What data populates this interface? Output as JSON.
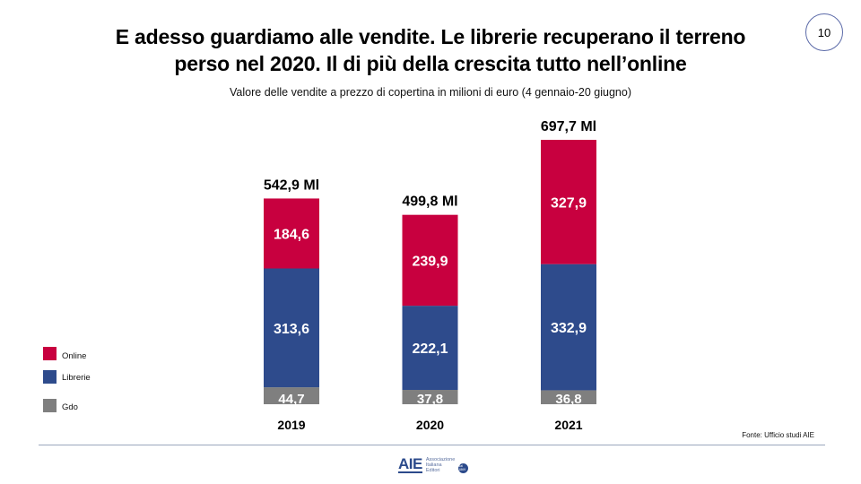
{
  "header": {
    "title_line1": "E adesso guardiamo alle vendite. Le librerie recuperano il terreno",
    "title_line2": "perso nel 2020. Il di più della crescita tutto nell’online",
    "page_number": "10"
  },
  "chart_data": {
    "type": "bar",
    "stacked": true,
    "title": "Valore delle vendite a prezzo di copertina in milioni di euro (4 gennaio-20 giugno)",
    "xlabel": "",
    "ylabel": "",
    "categories": [
      "2019",
      "2020",
      "2021"
    ],
    "series": [
      {
        "name": "Gdo",
        "color": "#7f7f7f",
        "values": [
          44.7,
          37.8,
          36.8
        ],
        "labels": [
          "44,7",
          "37,8",
          "36,8"
        ]
      },
      {
        "name": "Librerie",
        "color": "#2e4b8c",
        "values": [
          313.6,
          222.1,
          332.9
        ],
        "labels": [
          "313,6",
          "222,1",
          "332,9"
        ]
      },
      {
        "name": "Online",
        "color": "#c8003f",
        "values": [
          184.6,
          239.9,
          327.9
        ],
        "labels": [
          "184,6",
          "239,9",
          "327,9"
        ]
      }
    ],
    "totals": [
      542.9,
      499.8,
      697.7
    ],
    "total_labels": [
      "542,9 Ml",
      "499,8 Ml",
      "697,7 Ml"
    ],
    "ylim": [
      0,
      697.7
    ],
    "grid": false,
    "legend_position": "left"
  },
  "legend": {
    "items": [
      {
        "label": "Online",
        "color": "#c8003f"
      },
      {
        "label": "Librerie",
        "color": "#2e4b8c"
      },
      {
        "label": "Gdo",
        "color": "#7f7f7f"
      }
    ]
  },
  "footer": {
    "source": "Fonte: Ufficio studi AIE",
    "logo_mark": "AIE",
    "logo_line1": "Associazione",
    "logo_line2": "Italiana",
    "logo_line3": "Editori",
    "logo_seal": "dal 1869"
  }
}
